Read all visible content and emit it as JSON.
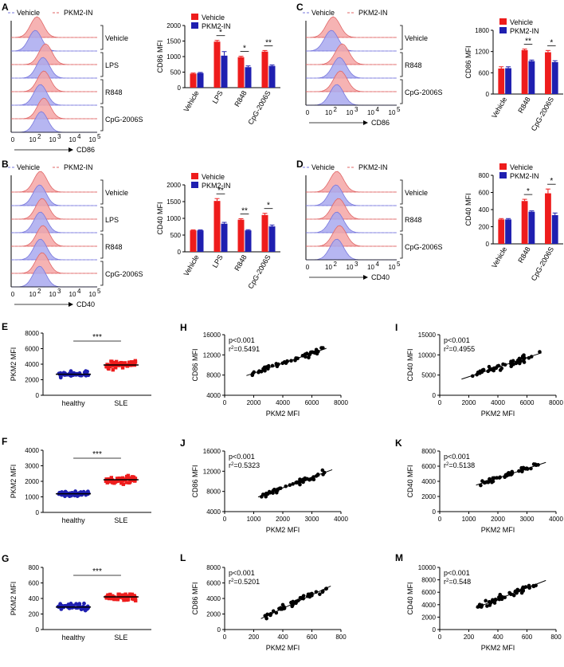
{
  "colors": {
    "red": "#ee1c1c",
    "blue": "#1f1fb0",
    "hist_red": "#f4a6a6",
    "hist_blue": "#a9a9ee",
    "line_red": "#e06666",
    "line_blue": "#7777dd",
    "black": "#000000"
  },
  "chart_data": [
    {
      "type": "histogram",
      "id": "A",
      "label": "A",
      "legend": [
        "Vehicle",
        "PKM2-IN"
      ],
      "rows": [
        "Vehicle",
        "LPS",
        "R848",
        "CpG-2006S"
      ],
      "x_ticks": [
        "0",
        "10",
        "10",
        "10",
        "10"
      ],
      "x_tick_exponents": [
        "",
        "2",
        "3",
        "4",
        "5"
      ],
      "xlabel": "CD86"
    },
    {
      "type": "bar",
      "id": "A-bar",
      "ylabel": "CD86 MFI",
      "ylim": [
        0,
        2000
      ],
      "yticks": [
        0,
        500,
        1000,
        1500,
        2000
      ],
      "categories": [
        "Vehicle",
        "LPS",
        "R848",
        "CpG-2006S"
      ],
      "series": [
        {
          "name": "Vehicle",
          "values": [
            450,
            1480,
            980,
            1160
          ],
          "errors": [
            20,
            40,
            30,
            35
          ]
        },
        {
          "name": "PKM2-IN",
          "values": [
            470,
            1030,
            660,
            700
          ],
          "errors": [
            20,
            130,
            40,
            30
          ]
        }
      ],
      "significance": [
        "",
        "*",
        "*",
        "**"
      ]
    },
    {
      "type": "histogram",
      "id": "C",
      "label": "C",
      "legend": [
        "Vehicle",
        "PKM2-IN"
      ],
      "rows": [
        "Vehicle",
        "R848",
        "CpG-2006S"
      ],
      "x_ticks": [
        "0",
        "10",
        "10",
        "10",
        "10"
      ],
      "x_tick_exponents": [
        "",
        "2",
        "3",
        "4",
        "5"
      ],
      "xlabel": "CD86"
    },
    {
      "type": "bar",
      "id": "C-bar",
      "ylabel": "CD86 MFI",
      "ylim": [
        0,
        1800
      ],
      "yticks": [
        0,
        600,
        1200,
        1800
      ],
      "categories": [
        "Vehicle",
        "R848",
        "CpG-2006S"
      ],
      "series": [
        {
          "name": "Vehicle",
          "values": [
            720,
            1240,
            1180
          ],
          "errors": [
            50,
            30,
            50
          ]
        },
        {
          "name": "PKM2-IN",
          "values": [
            730,
            930,
            900
          ],
          "errors": [
            40,
            30,
            40
          ]
        }
      ],
      "significance": [
        "",
        "**",
        "*"
      ]
    },
    {
      "type": "histogram",
      "id": "B",
      "label": "B",
      "legend": [
        "Vehicle",
        "PKM2-IN"
      ],
      "rows": [
        "Vehicle",
        "LPS",
        "R848",
        "CpG-2006S"
      ],
      "x_ticks": [
        "0",
        "10",
        "10",
        "10",
        "10"
      ],
      "x_tick_exponents": [
        "",
        "2",
        "3",
        "4",
        "5"
      ],
      "xlabel": "CD40"
    },
    {
      "type": "bar",
      "id": "B-bar",
      "ylabel": "CD40 MFI",
      "ylim": [
        0,
        2000
      ],
      "yticks": [
        0,
        500,
        1000,
        1500,
        2000
      ],
      "categories": [
        "Vehicle",
        "LPS",
        "R848",
        "CpG-2006S"
      ],
      "series": [
        {
          "name": "Vehicle",
          "values": [
            640,
            1520,
            960,
            1100
          ],
          "errors": [
            15,
            70,
            30,
            50
          ]
        },
        {
          "name": "PKM2-IN",
          "values": [
            640,
            840,
            640,
            760
          ],
          "errors": [
            15,
            40,
            20,
            40
          ]
        }
      ],
      "significance": [
        "",
        "**",
        "**",
        "*"
      ]
    },
    {
      "type": "histogram",
      "id": "D",
      "label": "D",
      "legend": [
        "Vehicle",
        "PKM2-IN"
      ],
      "rows": [
        "Vehicle",
        "R848",
        "CpG-2006S"
      ],
      "x_ticks": [
        "0",
        "10",
        "10",
        "10",
        "10"
      ],
      "x_tick_exponents": [
        "",
        "2",
        "3",
        "4",
        "5"
      ],
      "xlabel": "CD40"
    },
    {
      "type": "bar",
      "id": "D-bar",
      "ylabel": "CD40 MFI",
      "ylim": [
        0,
        800
      ],
      "yticks": [
        0,
        200,
        400,
        600,
        800
      ],
      "categories": [
        "Vehicle",
        "R848",
        "CpG-2006S"
      ],
      "series": [
        {
          "name": "Vehicle",
          "values": [
            285,
            500,
            590
          ],
          "errors": [
            10,
            20,
            50
          ]
        },
        {
          "name": "PKM2-IN",
          "values": [
            285,
            375,
            335
          ],
          "errors": [
            10,
            10,
            25
          ]
        }
      ],
      "significance": [
        "",
        "*",
        "*"
      ]
    },
    {
      "type": "scatter",
      "id": "E",
      "label": "E",
      "ylabel": "PKM2 MFI",
      "ylim": [
        0,
        8000
      ],
      "yticks": [
        0,
        2000,
        4000,
        6000,
        8000
      ],
      "groups": [
        "healthy",
        "SLE"
      ],
      "means": [
        2700,
        3900
      ],
      "significance": "***"
    },
    {
      "type": "scatter",
      "id": "F",
      "label": "F",
      "ylabel": "PKM2 MFI",
      "ylim": [
        0,
        4000
      ],
      "yticks": [
        0,
        1000,
        2000,
        3000,
        4000
      ],
      "groups": [
        "healthy",
        "SLE"
      ],
      "means": [
        1200,
        2100
      ],
      "significance": "***"
    },
    {
      "type": "scatter",
      "id": "G",
      "label": "G",
      "ylabel": "PKM2 MFI",
      "ylim": [
        0,
        800
      ],
      "yticks": [
        0,
        200,
        400,
        600,
        800
      ],
      "groups": [
        "healthy",
        "SLE"
      ],
      "means": [
        290,
        420
      ],
      "significance": "***"
    },
    {
      "type": "scatter",
      "id": "H",
      "label": "H",
      "xlabel": "PKM2 MFI",
      "ylabel": "CD86 MFI",
      "xlim": [
        0,
        8000
      ],
      "ylim": [
        4000,
        16000
      ],
      "xticks": [
        0,
        2000,
        4000,
        6000,
        8000
      ],
      "yticks": [
        4000,
        8000,
        12000,
        16000
      ],
      "p_text": "p<0.001",
      "r2_text": "=0.5491",
      "fit": [
        [
          1500,
          7900
        ],
        [
          7000,
          13300
        ]
      ]
    },
    {
      "type": "scatter",
      "id": "I",
      "label": "I",
      "xlabel": "PKM2 MFI",
      "ylabel": "CD40 MFI",
      "xlim": [
        0,
        8000
      ],
      "ylim": [
        0,
        15000
      ],
      "xticks": [
        0,
        2000,
        4000,
        6000,
        8000
      ],
      "yticks": [
        0,
        5000,
        10000,
        15000
      ],
      "p_text": "p<0.001",
      "r2_text": "=0.4955",
      "fit": [
        [
          1500,
          4000
        ],
        [
          7000,
          10500
        ]
      ]
    },
    {
      "type": "scatter",
      "id": "J",
      "label": "J",
      "xlabel": "PKM2 MFI",
      "ylabel": "CD86 MFI",
      "xlim": [
        0,
        4000
      ],
      "ylim": [
        4000,
        16000
      ],
      "xticks": [
        0,
        1000,
        2000,
        3000,
        4000
      ],
      "yticks": [
        4000,
        8000,
        12000,
        16000
      ],
      "p_text": "p<0.001",
      "r2_text": "=0.5323",
      "fit": [
        [
          1150,
          6900
        ],
        [
          3700,
          12300
        ]
      ]
    },
    {
      "type": "scatter",
      "id": "K",
      "label": "K",
      "xlabel": "PKM2 MFI",
      "ylabel": "CD40 MFI",
      "xlim": [
        0,
        4000
      ],
      "ylim": [
        0,
        8000
      ],
      "xticks": [
        0,
        1000,
        2000,
        3000,
        4000
      ],
      "yticks": [
        0,
        2000,
        4000,
        6000,
        8000
      ],
      "p_text": "p<0.001",
      "r2_text": "=0.5138",
      "fit": [
        [
          1250,
          3500
        ],
        [
          3650,
          6500
        ]
      ]
    },
    {
      "type": "scatter",
      "id": "L",
      "label": "L",
      "xlabel": "PKM2 MFI",
      "ylabel": "CD86 MFI",
      "xlim": [
        0,
        800
      ],
      "ylim": [
        0,
        8000
      ],
      "xticks": [
        0,
        200,
        400,
        600,
        800
      ],
      "yticks": [
        0,
        2000,
        4000,
        6000,
        8000
      ],
      "p_text": "p<0.001",
      "r2_text": "=0.5201",
      "fit": [
        [
          250,
          1400
        ],
        [
          730,
          5600
        ]
      ]
    },
    {
      "type": "scatter",
      "id": "M",
      "label": "M",
      "xlabel": "PKM2 MFI",
      "ylabel": "CD40 MFI",
      "xlim": [
        0,
        800
      ],
      "ylim": [
        0,
        10000
      ],
      "xticks": [
        0,
        200,
        400,
        600,
        800
      ],
      "yticks": [
        0,
        2000,
        4000,
        6000,
        8000,
        10000
      ],
      "p_text": "p<0.001",
      "r2_text": "=0.548",
      "fit": [
        [
          250,
          3500
        ],
        [
          730,
          7900
        ]
      ]
    }
  ]
}
